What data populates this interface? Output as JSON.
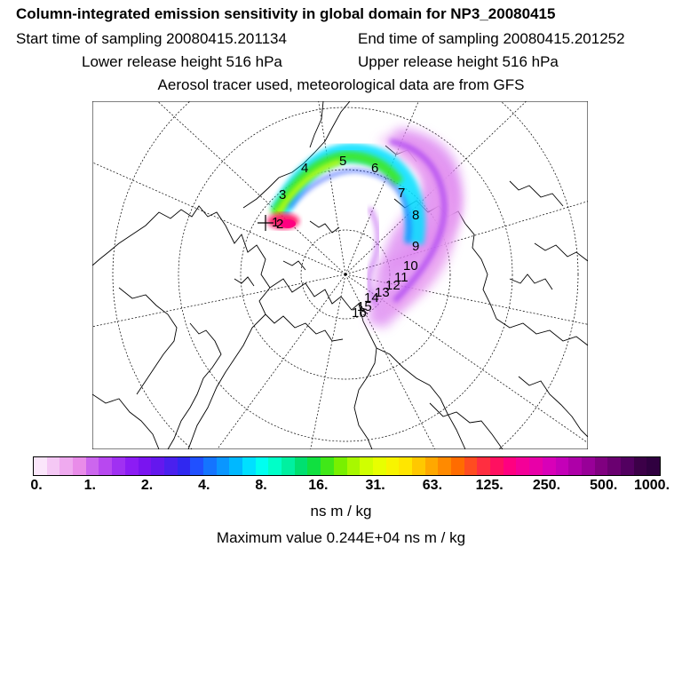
{
  "header": {
    "title": "Column-integrated emission sensitivity in global domain for NP3_20080415",
    "start_time": "Start time of sampling 20080415.201134",
    "end_time": "End time of sampling 20080415.201252",
    "lower_release": "Lower release height  516 hPa",
    "upper_release": "Upper release height  516 hPa",
    "tracer_info": "Aerosol tracer used, meteorological data are from GFS"
  },
  "map": {
    "projection": "polar-stereographic-north",
    "graticule": "dashed",
    "day_labels": [
      "1",
      "2",
      "3",
      "4",
      "5",
      "6",
      "7",
      "8",
      "9",
      "10",
      "11",
      "12",
      "13",
      "14",
      "15",
      "16"
    ]
  },
  "colorbar": {
    "tick_labels": [
      "0.",
      "1.",
      "2.",
      "4.",
      "8.",
      "16.",
      "31.",
      "63.",
      "125.",
      "250.",
      "500.",
      "1000."
    ],
    "colors": [
      "#fbe6fb",
      "#f5c8f5",
      "#efaaef",
      "#e98ce9",
      "#cc66ee",
      "#b848f0",
      "#a030f2",
      "#8c1cf4",
      "#7a14f0",
      "#6418ee",
      "#4a20ee",
      "#3028f0",
      "#2050ff",
      "#1474ff",
      "#0a96ff",
      "#00b8ff",
      "#00e0ff",
      "#00fff0",
      "#00ffc8",
      "#00f0a0",
      "#00e070",
      "#10e040",
      "#40e818",
      "#78f000",
      "#a8f800",
      "#d0ff00",
      "#e8ff00",
      "#f8f400",
      "#ffe600",
      "#ffc800",
      "#ffa800",
      "#ff8a00",
      "#ff6c00",
      "#ff4c20",
      "#ff2e40",
      "#ff1060",
      "#ff0080",
      "#f40098",
      "#e800a8",
      "#d800b8",
      "#c400b8",
      "#ae00a8",
      "#980098",
      "#800080",
      "#6a0070",
      "#520060",
      "#3c0048",
      "#300040"
    ]
  },
  "units": "ns m / kg",
  "max_value": "Maximum value  0.244E+04 ns m / kg"
}
